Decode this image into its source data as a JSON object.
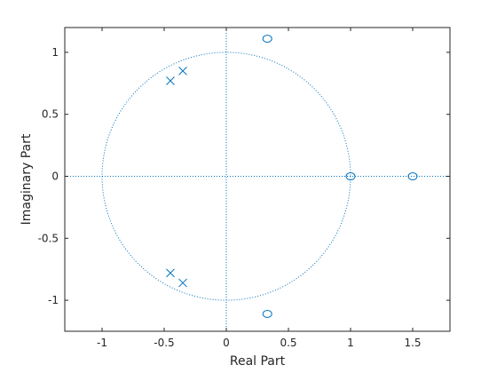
{
  "chart_data": {
    "type": "scatter",
    "title": "",
    "xlabel": "Real Part",
    "ylabel": "Imaginary Part",
    "xlim": [
      -1.3,
      1.8
    ],
    "ylim": [
      -1.25,
      1.2
    ],
    "x_ticks": [
      -1,
      -0.5,
      0,
      0.5,
      1,
      1.5
    ],
    "x_tick_labels": [
      "-1",
      "-0.5",
      "0",
      "0.5",
      "1",
      "1.5"
    ],
    "y_ticks": [
      -1,
      -0.5,
      0,
      0.5,
      1
    ],
    "y_tick_labels": [
      "-1",
      "-0.5",
      "0",
      "0.5",
      "1"
    ],
    "grid": false,
    "unit_circle": true,
    "reference_axes": true,
    "series": [
      {
        "marker": "o",
        "color": "#0072BD",
        "points": [
          [
            0.33,
            1.11
          ],
          [
            0.33,
            -1.11
          ],
          [
            1.0,
            0.0
          ],
          [
            1.5,
            0.0
          ]
        ]
      },
      {
        "marker": "x",
        "color": "#0072BD",
        "points": [
          [
            -0.45,
            0.77
          ],
          [
            -0.35,
            0.85
          ],
          [
            -0.45,
            -0.78
          ],
          [
            -0.35,
            -0.86
          ]
        ]
      }
    ]
  }
}
